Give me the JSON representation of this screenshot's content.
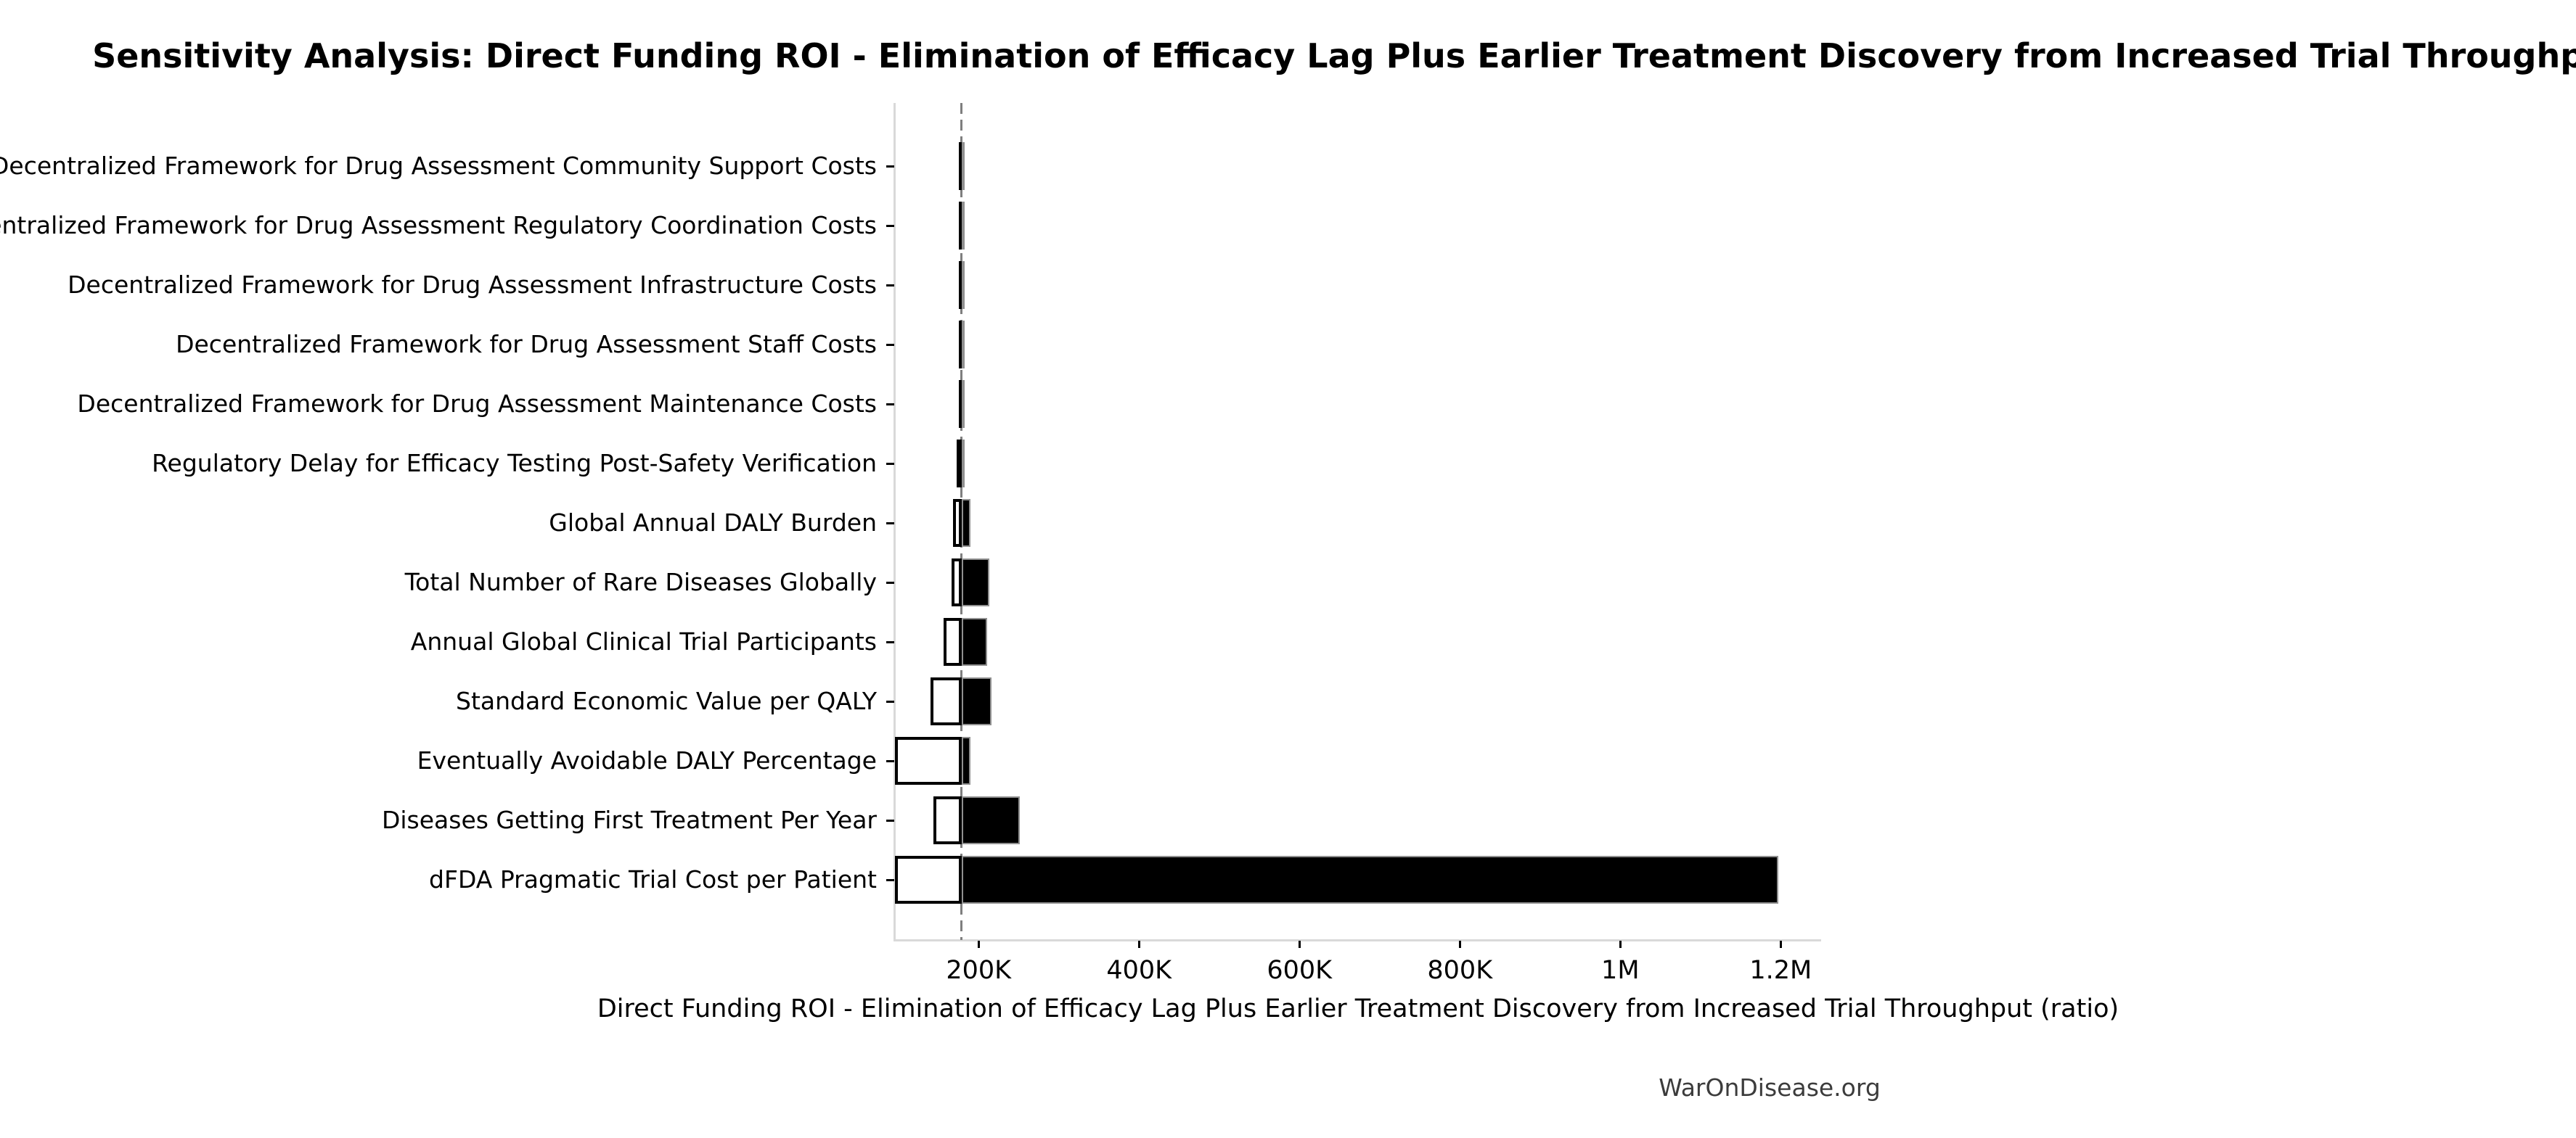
{
  "page": {
    "watermark": "WarOnDisease.org"
  },
  "chart_data": {
    "type": "bar",
    "variant": "tornado-sensitivity",
    "title": "Sensitivity Analysis: Direct Funding ROI - Elimination of Efficacy Lag Plus Earlier Treatment Discovery from Increased Trial Throughput",
    "xlabel": "Direct Funding ROI - Elimination of Efficacy Lag Plus Earlier Treatment Discovery from Increased Trial Throughput (ratio)",
    "ylabel": "",
    "grid": false,
    "legend": false,
    "baseline_value": 178900,
    "xlim": [
      95700,
      1250400
    ],
    "x_ticks": [
      {
        "value": 200000,
        "label": "200K"
      },
      {
        "value": 400000,
        "label": "400K"
      },
      {
        "value": 600000,
        "label": "600K"
      },
      {
        "value": 800000,
        "label": "800K"
      },
      {
        "value": 1000000,
        "label": "1M"
      },
      {
        "value": 1200000,
        "label": "1.2M"
      }
    ],
    "rows": [
      {
        "label": "Decentralized Framework for Drug Assessment Community Support Costs",
        "low": 175000,
        "high": 181000
      },
      {
        "label": "Decentralized Framework for Drug Assessment Regulatory Coordination Costs",
        "low": 175000,
        "high": 181000
      },
      {
        "label": "Decentralized Framework for Drug Assessment Infrastructure Costs",
        "low": 175000,
        "high": 181000
      },
      {
        "label": "Decentralized Framework for Drug Assessment Staff Costs",
        "low": 175000,
        "high": 181000
      },
      {
        "label": "Decentralized Framework for Drug Assessment Maintenance Costs",
        "low": 175000,
        "high": 181000
      },
      {
        "label": "Regulatory Delay for Efficacy Testing Post-Safety Verification",
        "low": 173000,
        "high": 183000
      },
      {
        "label": "Global Annual DALY Burden",
        "low": 168000,
        "high": 190000
      },
      {
        "label": "Total Number of Rare Diseases Globally",
        "low": 166000,
        "high": 213000
      },
      {
        "label": "Annual Global Clinical Trial Participants",
        "low": 156000,
        "high": 211000
      },
      {
        "label": "Standard Economic Value per QALY",
        "low": 140000,
        "high": 216000
      },
      {
        "label": "Eventually Avoidable DALY Percentage",
        "low": 96000,
        "high": 190000
      },
      {
        "label": "Diseases Getting First Treatment Per Year",
        "low": 144000,
        "high": 251000
      },
      {
        "label": "dFDA Pragmatic Trial Cost per Patient",
        "low": 96000,
        "high": 1197000
      }
    ],
    "colors": {
      "low_bar_fill": "#ffffff",
      "low_bar_edge": "#000000",
      "high_bar_fill": "#000000",
      "high_bar_edge": "#909090",
      "baseline_line": "#7f7f7f",
      "spine": "#d9d9d9",
      "text": "#000000",
      "watermark_text": "#3c3c3c"
    }
  }
}
